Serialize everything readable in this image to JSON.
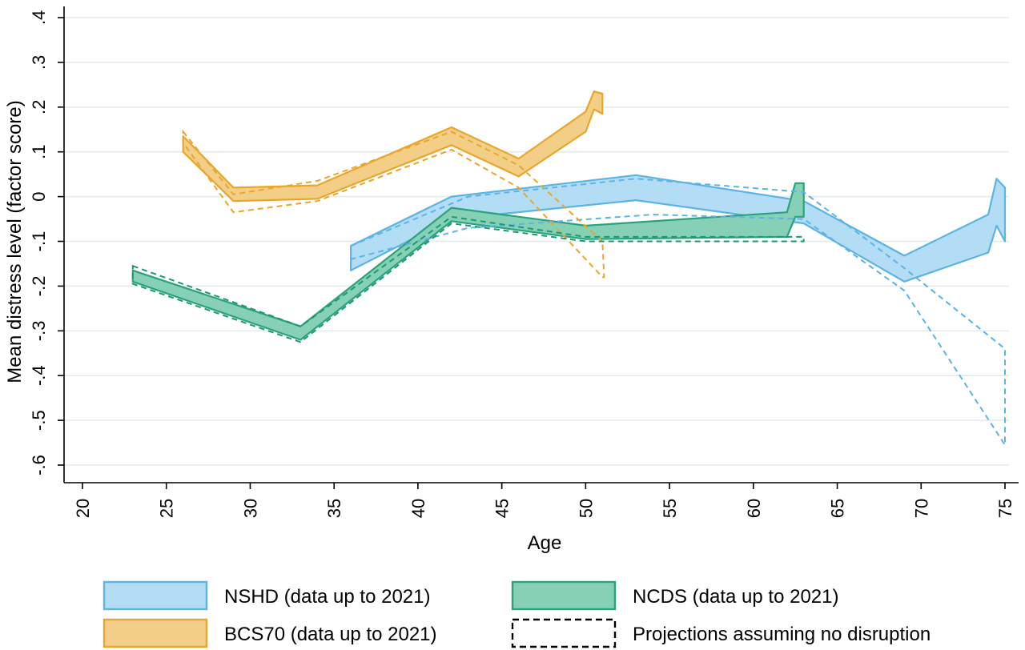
{
  "chart_data": {
    "type": "area",
    "title": "",
    "xlabel": "Age",
    "ylabel": "Mean distress level (factor score)",
    "xlim": [
      19,
      76
    ],
    "ylim": [
      -0.64,
      0.42
    ],
    "xticks": [
      20,
      25,
      30,
      35,
      40,
      45,
      50,
      55,
      60,
      65,
      70,
      75
    ],
    "xtick_labels": [
      "20",
      "25",
      "30",
      "35",
      "40",
      "45",
      "50",
      "55",
      "60",
      "65",
      "70",
      "75"
    ],
    "yticks": [
      0.4,
      0.3,
      0.2,
      0.1,
      0,
      -0.1,
      -0.2,
      -0.3,
      -0.4,
      -0.5,
      -0.6
    ],
    "ytick_labels": [
      ".4",
      ".3",
      ".2",
      ".1",
      "0",
      "-.1",
      "-.2",
      "-.3",
      "-.4",
      "-.5",
      "-.6"
    ],
    "grid": true,
    "legend_position": "bottom",
    "legend_columns": 2,
    "series": [
      {
        "key": "nshd",
        "name": "NSHD (data up to 2021)",
        "style": "band",
        "fill": "#b3dcf5",
        "stroke": "#5bb4e5",
        "upper": [
          [
            36,
            -0.11
          ],
          [
            42,
            0.0
          ],
          [
            53,
            0.048
          ],
          [
            63,
            -0.01
          ],
          [
            69,
            -0.132
          ],
          [
            74,
            -0.04
          ],
          [
            74.5,
            0.04
          ],
          [
            75,
            0.02
          ]
        ],
        "lower": [
          [
            36,
            -0.165
          ],
          [
            42,
            -0.05
          ],
          [
            53,
            -0.008
          ],
          [
            63,
            -0.06
          ],
          [
            69,
            -0.19
          ],
          [
            74,
            -0.125
          ],
          [
            74.5,
            -0.065
          ],
          [
            75,
            -0.1
          ]
        ]
      },
      {
        "key": "bcs70",
        "name": "BCS70 (data up to 2021)",
        "style": "band",
        "fill": "#f2ce86",
        "stroke": "#e8a72c",
        "upper": [
          [
            26,
            0.135
          ],
          [
            29,
            0.02
          ],
          [
            34,
            0.025
          ],
          [
            42,
            0.155
          ],
          [
            46,
            0.085
          ],
          [
            50,
            0.19
          ],
          [
            50.5,
            0.235
          ],
          [
            51,
            0.23
          ]
        ],
        "lower": [
          [
            26,
            0.1
          ],
          [
            29,
            -0.01
          ],
          [
            34,
            -0.005
          ],
          [
            42,
            0.115
          ],
          [
            46,
            0.045
          ],
          [
            50,
            0.145
          ],
          [
            50.5,
            0.195
          ],
          [
            51,
            0.185
          ]
        ]
      },
      {
        "key": "ncds",
        "name": "NCDS (data up to 2021)",
        "style": "band",
        "fill": "#86d0b6",
        "stroke": "#2aa37c",
        "upper": [
          [
            23,
            -0.165
          ],
          [
            33,
            -0.29
          ],
          [
            42,
            -0.025
          ],
          [
            50,
            -0.065
          ],
          [
            62,
            -0.035
          ],
          [
            62.5,
            0.03
          ],
          [
            63,
            0.03
          ]
        ],
        "lower": [
          [
            23,
            -0.19
          ],
          [
            33,
            -0.32
          ],
          [
            42,
            -0.055
          ],
          [
            50,
            -0.095
          ],
          [
            62,
            -0.09
          ],
          [
            62.5,
            -0.045
          ],
          [
            63,
            -0.045
          ]
        ]
      },
      {
        "key": "nshd_proj",
        "name": "Projections assuming no disruption",
        "style": "dashed-band",
        "stroke": "#5bb4e5",
        "upper": [
          [
            36,
            -0.11
          ],
          [
            43,
            0.0
          ],
          [
            53,
            0.04
          ],
          [
            63,
            0.01
          ],
          [
            69,
            -0.16
          ],
          [
            75,
            -0.34
          ]
        ],
        "lower": [
          [
            36,
            -0.14
          ],
          [
            43,
            -0.07
          ],
          [
            54,
            -0.04
          ],
          [
            63,
            -0.05
          ],
          [
            69,
            -0.21
          ],
          [
            75,
            -0.555
          ]
        ]
      },
      {
        "key": "bcs70_proj",
        "name": "Projections assuming no disruption",
        "style": "dashed-band",
        "stroke": "#e8a72c",
        "upper": [
          [
            26,
            0.145
          ],
          [
            29,
            0.005
          ],
          [
            34,
            0.035
          ],
          [
            42,
            0.145
          ],
          [
            46,
            0.07
          ],
          [
            51,
            -0.1
          ],
          [
            51.1,
            -0.18
          ]
        ],
        "lower": [
          [
            26,
            0.12
          ],
          [
            29,
            -0.035
          ],
          [
            34,
            -0.01
          ],
          [
            42,
            0.105
          ],
          [
            46,
            0.02
          ],
          [
            51,
            -0.18
          ]
        ]
      },
      {
        "key": "ncds_proj",
        "name": "Projections assuming no disruption",
        "style": "dashed-band",
        "stroke": "#1e9870",
        "upper": [
          [
            23,
            -0.155
          ],
          [
            33,
            -0.29
          ],
          [
            42,
            -0.045
          ],
          [
            50,
            -0.09
          ],
          [
            63,
            -0.09
          ]
        ],
        "lower": [
          [
            23,
            -0.195
          ],
          [
            33,
            -0.325
          ],
          [
            42,
            -0.06
          ],
          [
            50,
            -0.1
          ],
          [
            63,
            -0.1
          ]
        ]
      }
    ],
    "legend": [
      {
        "label": "NSHD (data up to 2021)",
        "swatch": "band",
        "fill": "#b3dcf5",
        "stroke": "#5bb4e5"
      },
      {
        "label": "NCDS (data up to 2021)",
        "swatch": "band",
        "fill": "#86d0b6",
        "stroke": "#2aa37c"
      },
      {
        "label": "BCS70 (data up to 2021)",
        "swatch": "band",
        "fill": "#f2ce86",
        "stroke": "#e8a72c"
      },
      {
        "label": "Projections assuming no disruption",
        "swatch": "dashed",
        "fill": "none",
        "stroke": "#000000"
      }
    ]
  }
}
